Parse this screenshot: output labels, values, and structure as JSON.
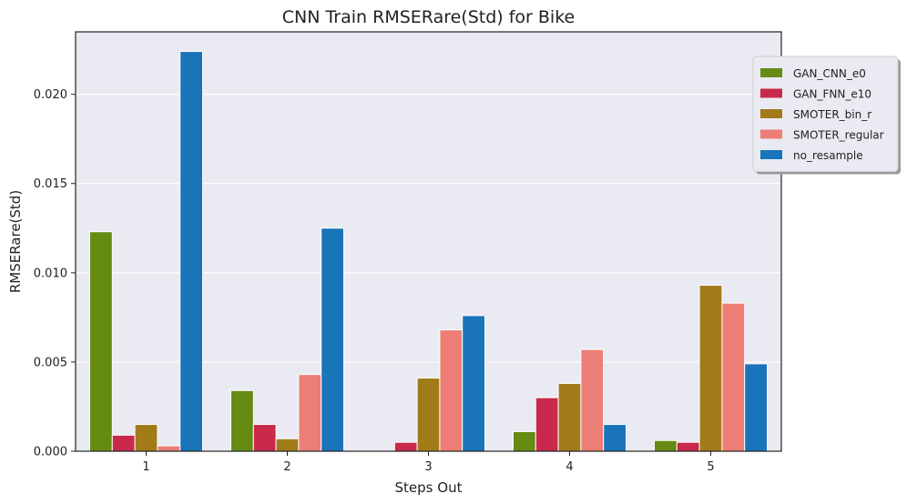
{
  "chart_data": {
    "type": "bar",
    "title": "CNN Train RMSERare(Std) for Bike",
    "xlabel": "Steps Out",
    "ylabel": "RMSERare(Std)",
    "categories": [
      "1",
      "2",
      "3",
      "4",
      "5"
    ],
    "ylim": [
      0,
      0.0235
    ],
    "yticks": [
      0.0,
      0.005,
      0.01,
      0.015,
      0.02
    ],
    "ytick_labels": [
      "0.000",
      "0.005",
      "0.010",
      "0.015",
      "0.020"
    ],
    "grid": true,
    "legend_position": "top-right",
    "series": [
      {
        "name": "GAN_CNN_e0",
        "color": "#658b13",
        "values": [
          0.0123,
          0.0034,
          0.0,
          0.0011,
          0.0006
        ]
      },
      {
        "name": "GAN_FNN_e10",
        "color": "#c9294b",
        "values": [
          0.0009,
          0.0015,
          0.0005,
          0.003,
          0.0005
        ]
      },
      {
        "name": "SMOTER_bin_r",
        "color": "#a07b18",
        "values": [
          0.0015,
          0.0007,
          0.0041,
          0.0038,
          0.0093
        ]
      },
      {
        "name": "SMOTER_regular",
        "color": "#ec7e75",
        "values": [
          0.0003,
          0.0043,
          0.0068,
          0.0057,
          0.0083
        ]
      },
      {
        "name": "no_resample",
        "color": "#1974b9",
        "values": [
          0.0224,
          0.0125,
          0.0076,
          0.0015,
          0.0049
        ]
      }
    ],
    "background_color": "#eaeaf2"
  }
}
